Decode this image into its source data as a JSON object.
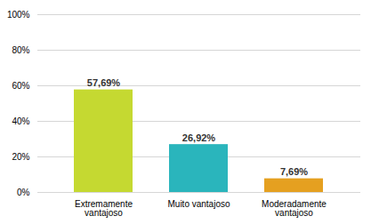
{
  "chart_data": {
    "type": "bar",
    "categories": [
      "Extremamente\nvantajoso",
      "Muito vantajoso",
      "Moderadamente\nvantajoso"
    ],
    "values": [
      57.69,
      26.92,
      7.69
    ],
    "value_labels": [
      "57,69%",
      "26,92%",
      "7,69%"
    ],
    "colors": [
      "#c5d931",
      "#2ab5bc",
      "#e5a020"
    ],
    "ylim": [
      0,
      100
    ],
    "yticks": [
      {
        "value": 0,
        "label": "0%"
      },
      {
        "value": 20,
        "label": "20%"
      },
      {
        "value": 40,
        "label": "40%"
      },
      {
        "value": 60,
        "label": "60%"
      },
      {
        "value": 80,
        "label": "80%"
      },
      {
        "value": 100,
        "label": "100%"
      }
    ],
    "grid": true,
    "data_labels": true
  }
}
